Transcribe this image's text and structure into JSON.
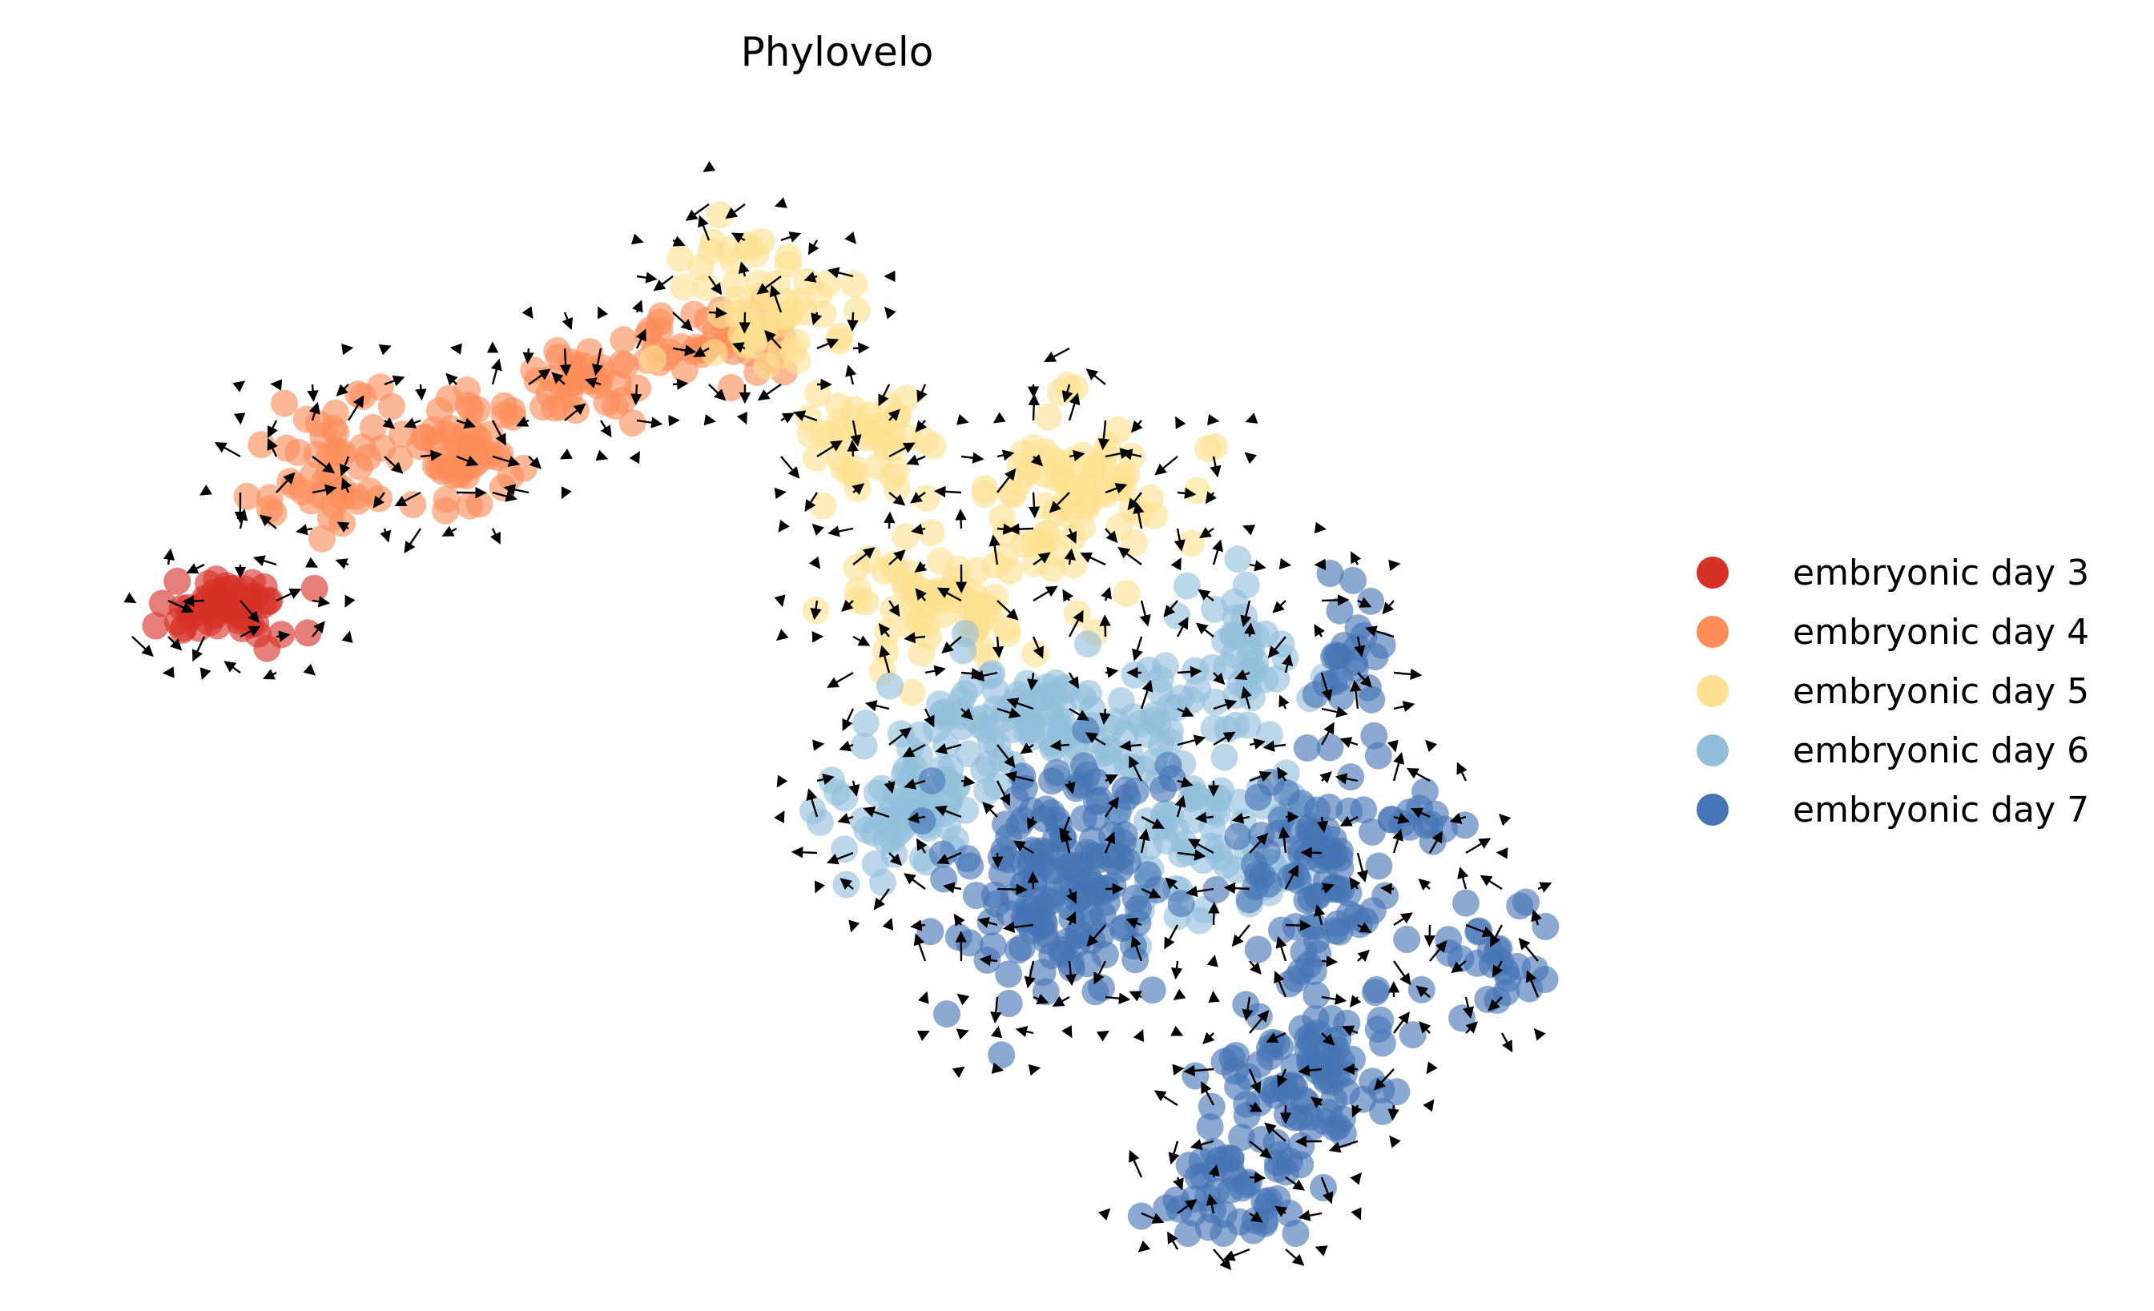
{
  "chart_data": {
    "type": "scatter",
    "title": "Phylovelo",
    "xlabel": "",
    "ylabel": "",
    "axes_visible": false,
    "grid": false,
    "legend_position": "right",
    "overlay": "velocity-arrows",
    "series": [
      {
        "name": "embryonic day 3",
        "color": "#d73027",
        "clusters": [
          {
            "cx": 0.08,
            "cy": 0.42,
            "rx": 0.05,
            "ry": 0.025,
            "n": 55
          }
        ]
      },
      {
        "name": "embryonic day 4",
        "color": "#fc8d59",
        "clusters": [
          {
            "cx": 0.15,
            "cy": 0.29,
            "rx": 0.04,
            "ry": 0.06,
            "n": 50
          },
          {
            "cx": 0.25,
            "cy": 0.28,
            "rx": 0.035,
            "ry": 0.05,
            "n": 55
          },
          {
            "cx": 0.33,
            "cy": 0.22,
            "rx": 0.04,
            "ry": 0.03,
            "n": 35
          },
          {
            "cx": 0.41,
            "cy": 0.18,
            "rx": 0.05,
            "ry": 0.04,
            "n": 40
          }
        ]
      },
      {
        "name": "embryonic day 5",
        "color": "#fee090",
        "clusters": [
          {
            "cx": 0.45,
            "cy": 0.14,
            "rx": 0.05,
            "ry": 0.06,
            "n": 55
          },
          {
            "cx": 0.52,
            "cy": 0.27,
            "rx": 0.04,
            "ry": 0.04,
            "n": 40
          },
          {
            "cx": 0.66,
            "cy": 0.32,
            "rx": 0.07,
            "ry": 0.07,
            "n": 80
          },
          {
            "cx": 0.57,
            "cy": 0.42,
            "rx": 0.07,
            "ry": 0.05,
            "n": 70
          }
        ]
      },
      {
        "name": "embryonic day 6",
        "color": "#91bfdb",
        "clusters": [
          {
            "cx": 0.65,
            "cy": 0.53,
            "rx": 0.09,
            "ry": 0.05,
            "n": 110
          },
          {
            "cx": 0.55,
            "cy": 0.6,
            "rx": 0.05,
            "ry": 0.05,
            "n": 60
          },
          {
            "cx": 0.75,
            "cy": 0.62,
            "rx": 0.07,
            "ry": 0.08,
            "n": 70
          },
          {
            "cx": 0.79,
            "cy": 0.47,
            "rx": 0.05,
            "ry": 0.05,
            "n": 40
          }
        ]
      },
      {
        "name": "embryonic day 7",
        "color": "#4575b4",
        "clusters": [
          {
            "cx": 0.66,
            "cy": 0.68,
            "rx": 0.07,
            "ry": 0.1,
            "n": 160
          },
          {
            "cx": 0.84,
            "cy": 0.68,
            "rx": 0.05,
            "ry": 0.1,
            "n": 90
          },
          {
            "cx": 0.83,
            "cy": 0.85,
            "rx": 0.06,
            "ry": 0.06,
            "n": 80
          },
          {
            "cx": 0.78,
            "cy": 0.96,
            "rx": 0.04,
            "ry": 0.05,
            "n": 50
          },
          {
            "cx": 0.96,
            "cy": 0.75,
            "rx": 0.04,
            "ry": 0.05,
            "n": 25
          },
          {
            "cx": 0.91,
            "cy": 0.62,
            "rx": 0.025,
            "ry": 0.02,
            "n": 12
          },
          {
            "cx": 0.86,
            "cy": 0.47,
            "rx": 0.025,
            "ry": 0.08,
            "n": 25
          }
        ]
      }
    ]
  }
}
